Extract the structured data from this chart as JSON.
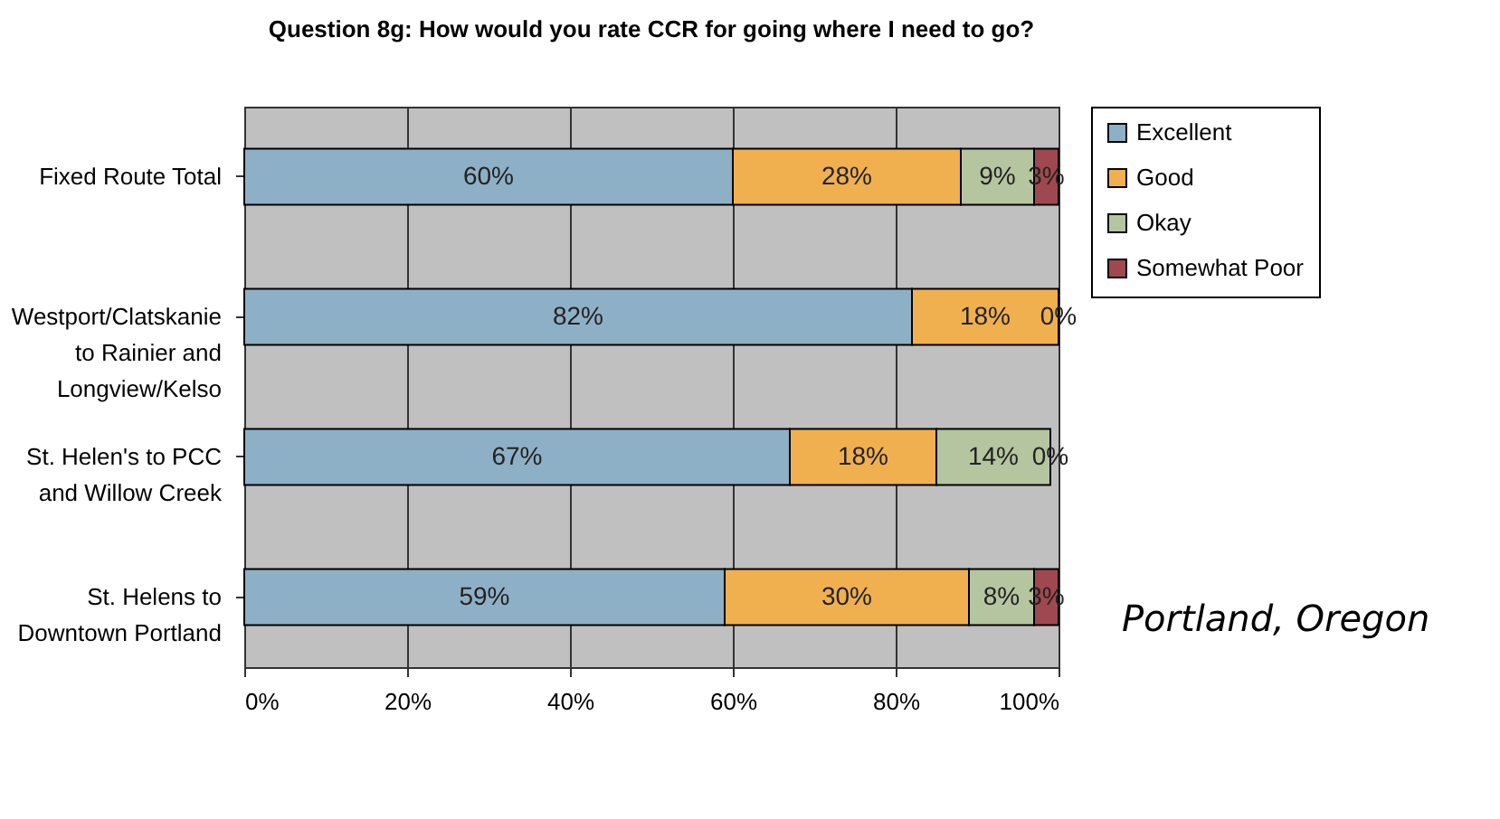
{
  "chart_data": {
    "type": "bar",
    "orientation": "horizontal",
    "stacked": true,
    "title": "Question 8g: How would you rate CCR for going where I need to go?",
    "categories": [
      "Fixed Route Total",
      "Westport/Clatskanie to Rainier and Longview/Kelso",
      "St. Helen's to PCC and Willow Creek",
      "St. Helens to Downtown Portland"
    ],
    "series": [
      {
        "name": "Excellent",
        "color": "#8eb0c6",
        "values": [
          60,
          82,
          67,
          59
        ],
        "value_labels": [
          "60%",
          "82%",
          "67%",
          "59%"
        ]
      },
      {
        "name": "Good",
        "color": "#f0b050",
        "values": [
          28,
          18,
          18,
          30
        ],
        "value_labels": [
          "28%",
          "18%",
          "18%",
          "30%"
        ]
      },
      {
        "name": "Okay",
        "color": "#b5c5a0",
        "values": [
          9,
          0,
          14,
          8
        ],
        "value_labels": [
          "9%",
          "0%",
          "14%",
          "8%"
        ]
      },
      {
        "name": "Somewhat Poor",
        "color": "#a04850",
        "values": [
          3,
          0,
          0,
          3
        ],
        "value_labels": [
          "3%",
          null,
          "0%",
          "3%"
        ]
      }
    ],
    "xlim": [
      0,
      100
    ],
    "xticks": [
      {
        "value": 0,
        "label": "0%"
      },
      {
        "value": 20,
        "label": "20%"
      },
      {
        "value": 40,
        "label": "40%"
      },
      {
        "value": 60,
        "label": "60%"
      },
      {
        "value": 80,
        "label": "80%"
      },
      {
        "value": 100,
        "label": "100%"
      }
    ],
    "grid": "x",
    "legend": "right",
    "annotations": [
      "Portland, Oregon"
    ]
  }
}
